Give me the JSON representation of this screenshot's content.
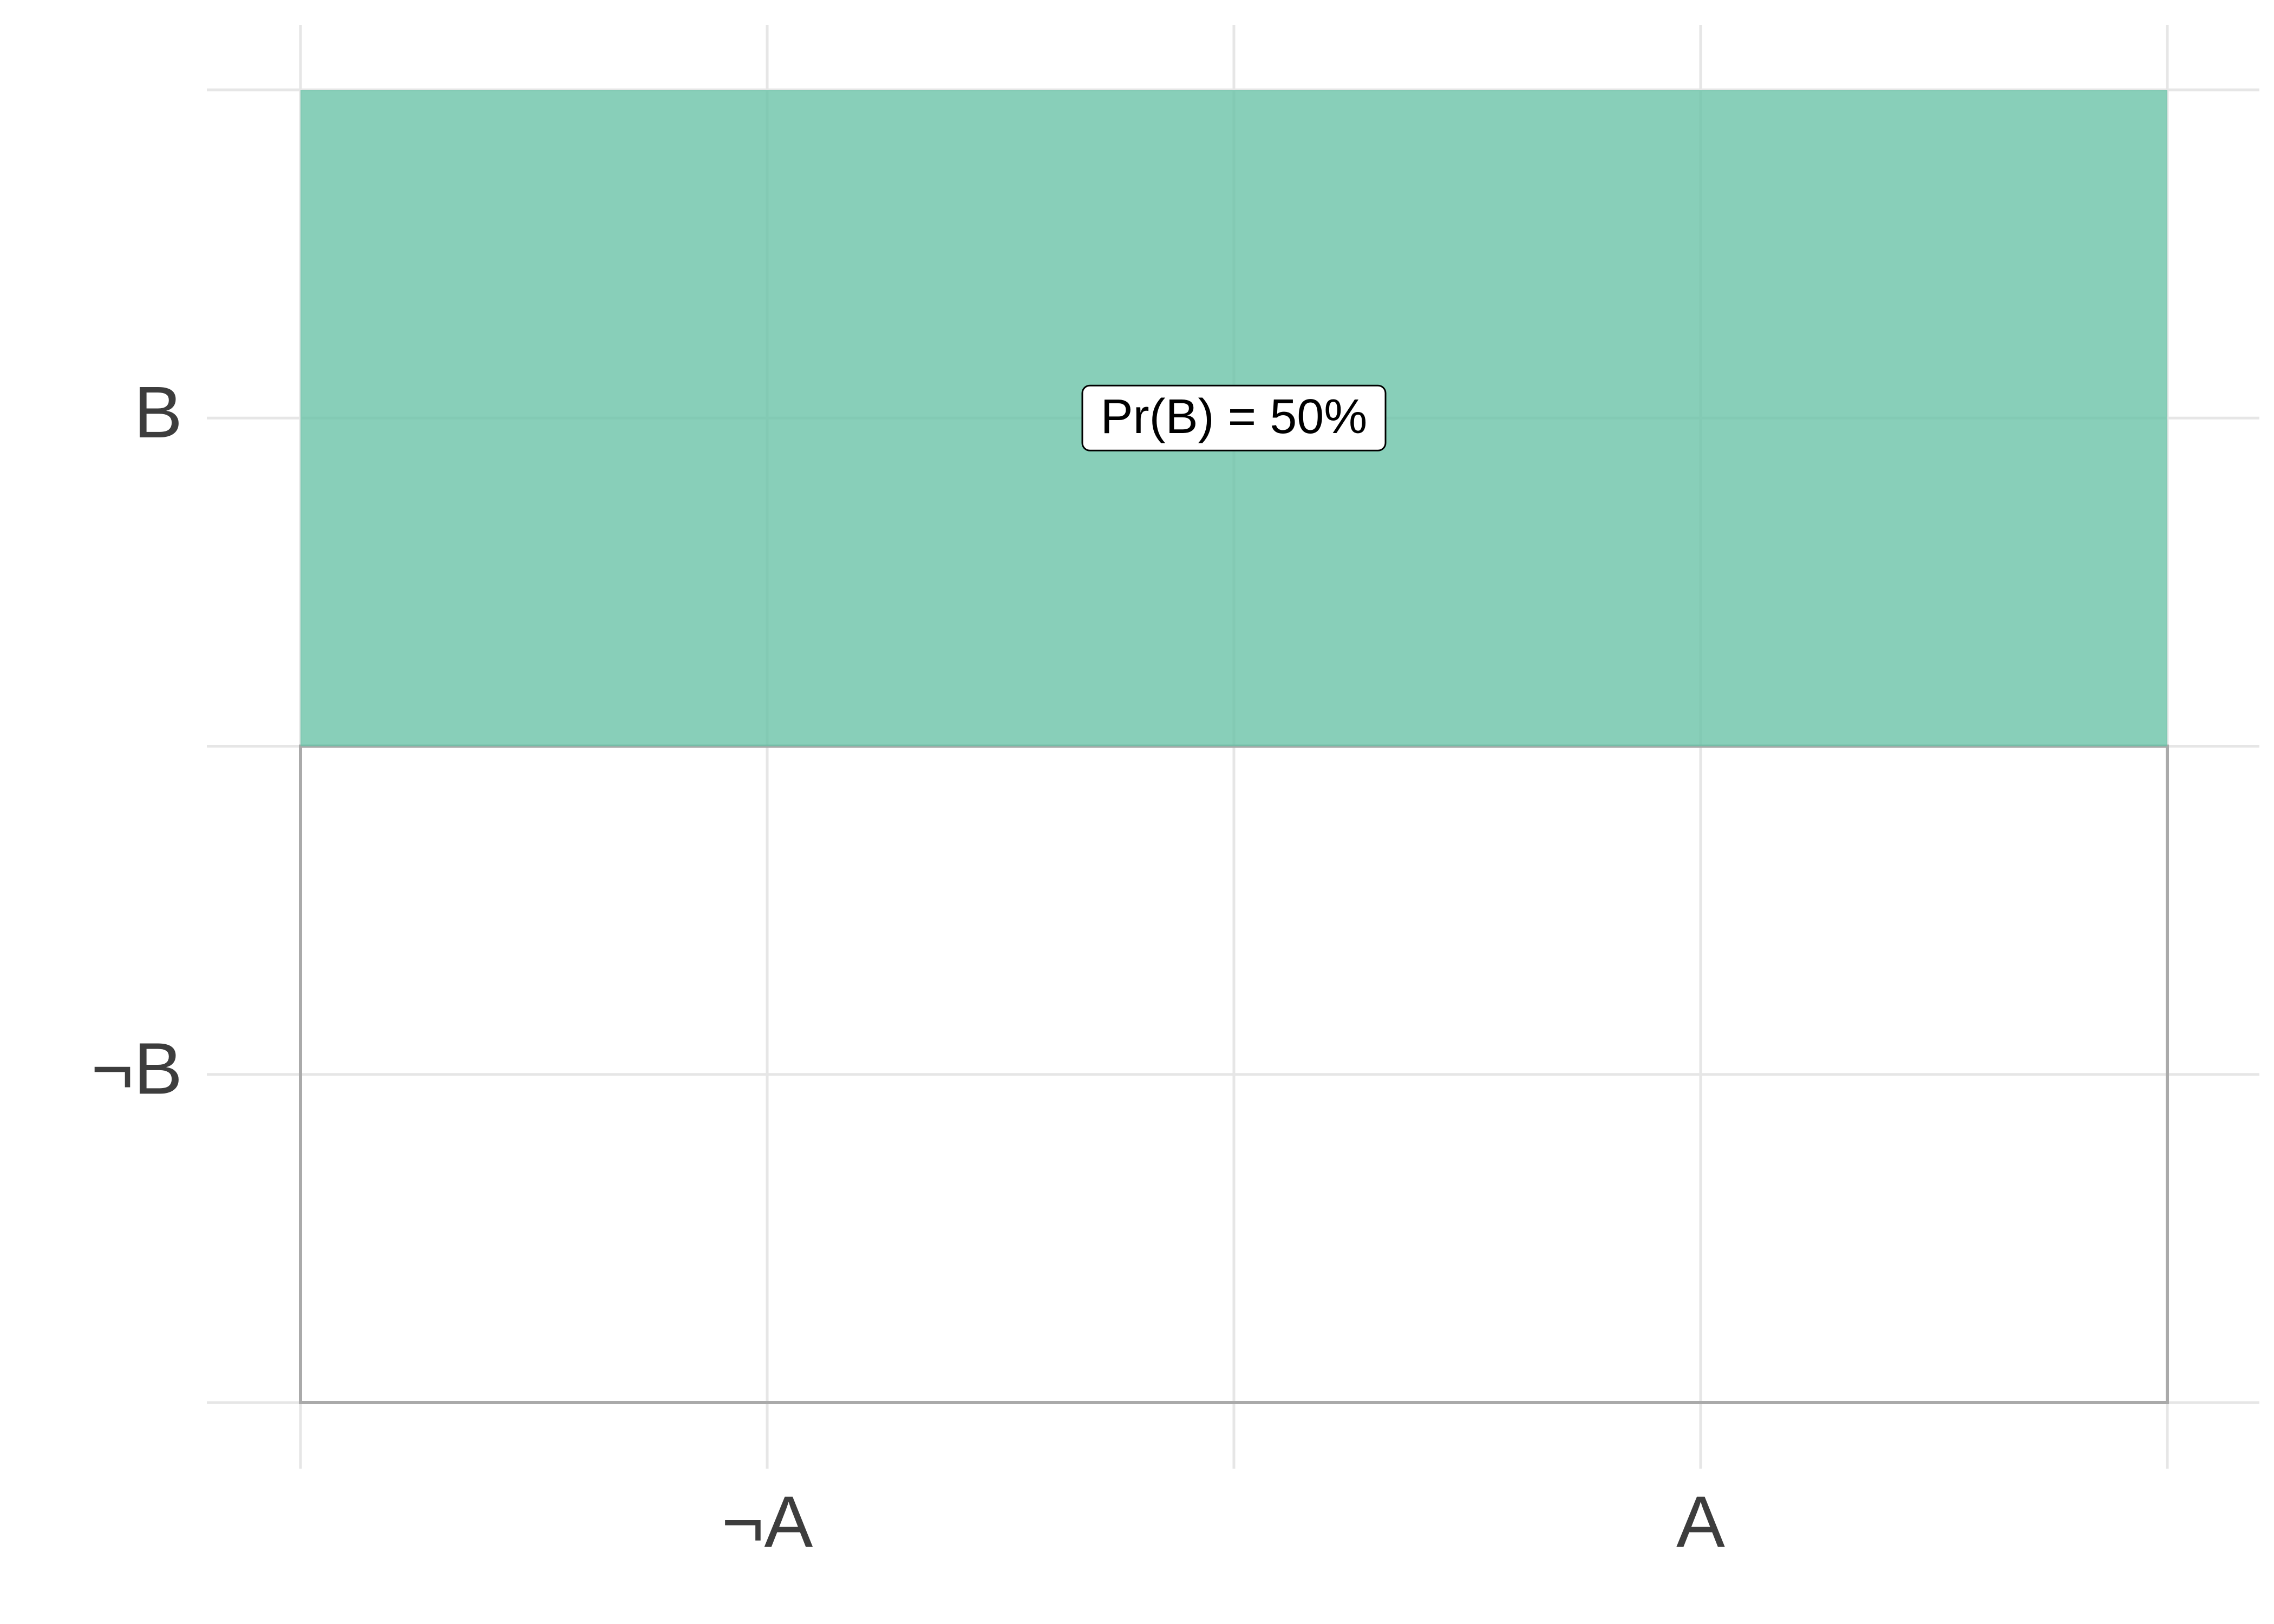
{
  "chart_data": {
    "type": "mosaic",
    "x_categories": [
      "¬A",
      "A"
    ],
    "y_categories": [
      "¬B",
      "B"
    ],
    "values": [
      50
    ],
    "value_labels": [
      "Pr(B) = 50%"
    ],
    "color": "#66c2a5",
    "ylim": [
      0,
      100
    ],
    "grid": true
  }
}
